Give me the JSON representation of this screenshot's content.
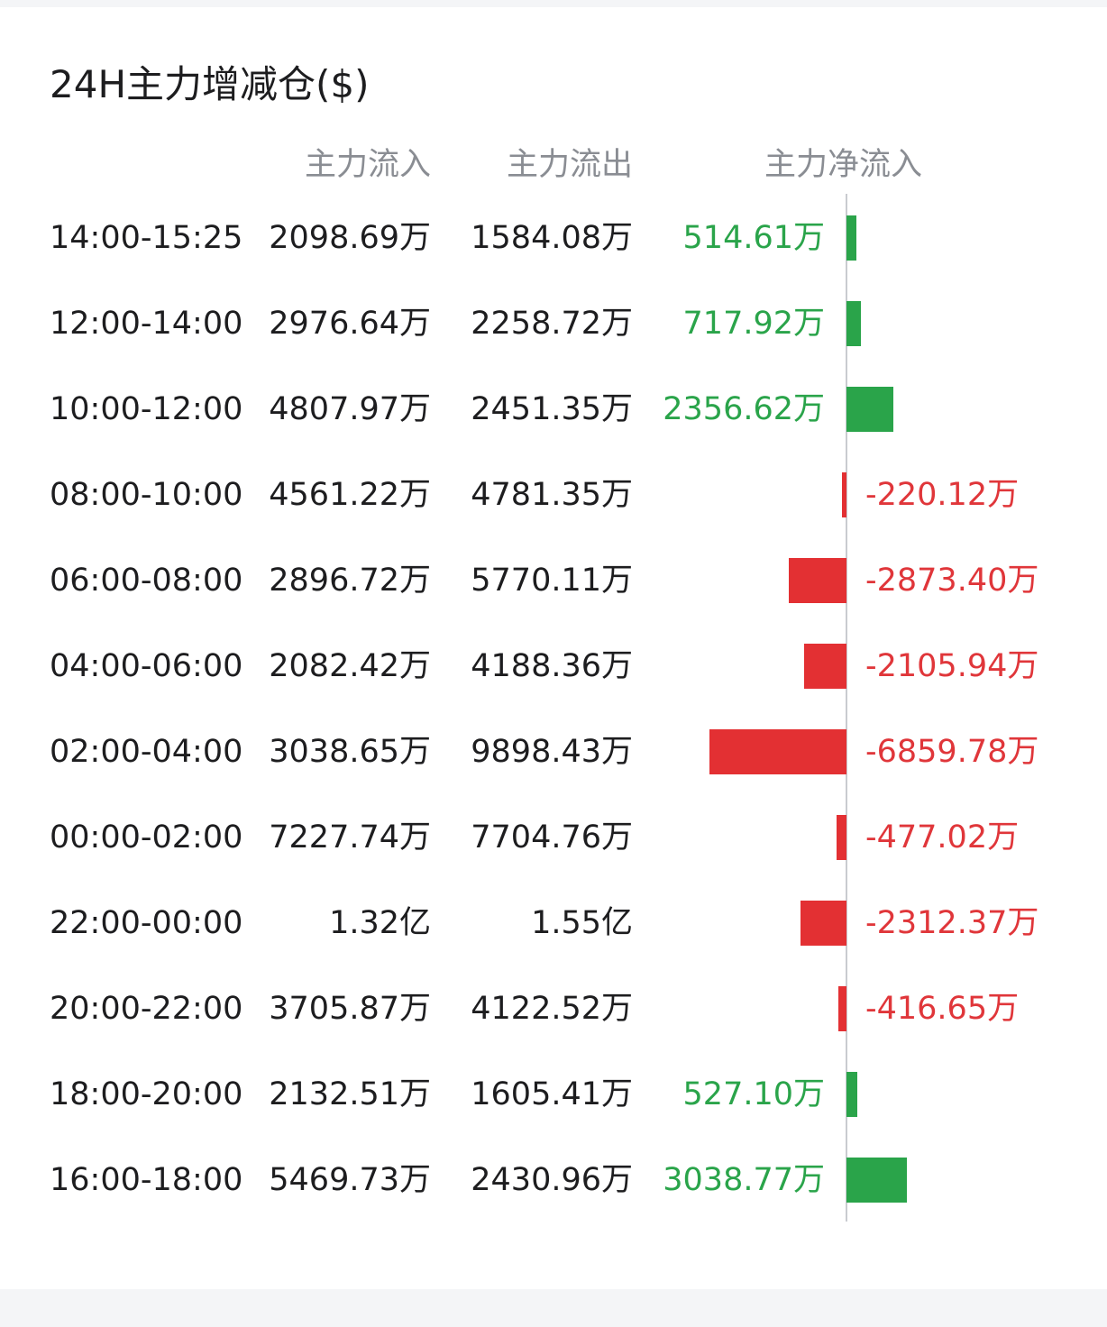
{
  "title": "24H主力增减仓($)",
  "columns": {
    "inflow": "主力流入",
    "outflow": "主力流出",
    "net": "主力净流入"
  },
  "colors": {
    "positive": "#2aa44a",
    "negative": "#e33033"
  },
  "rows": [
    {
      "time": "14:00-15:25",
      "inflow": "2098.69万",
      "outflow": "1584.08万",
      "net": "514.61万",
      "net_value": 514.61
    },
    {
      "time": "12:00-14:00",
      "inflow": "2976.64万",
      "outflow": "2258.72万",
      "net": "717.92万",
      "net_value": 717.92
    },
    {
      "time": "10:00-12:00",
      "inflow": "4807.97万",
      "outflow": "2451.35万",
      "net": "2356.62万",
      "net_value": 2356.62
    },
    {
      "time": "08:00-10:00",
      "inflow": "4561.22万",
      "outflow": "4781.35万",
      "net": "-220.12万",
      "net_value": -220.12
    },
    {
      "time": "06:00-08:00",
      "inflow": "2896.72万",
      "outflow": "5770.11万",
      "net": "-2873.40万",
      "net_value": -2873.4
    },
    {
      "time": "04:00-06:00",
      "inflow": "2082.42万",
      "outflow": "4188.36万",
      "net": "-2105.94万",
      "net_value": -2105.94
    },
    {
      "time": "02:00-04:00",
      "inflow": "3038.65万",
      "outflow": "9898.43万",
      "net": "-6859.78万",
      "net_value": -6859.78
    },
    {
      "time": "00:00-02:00",
      "inflow": "7227.74万",
      "outflow": "7704.76万",
      "net": "-477.02万",
      "net_value": -477.02
    },
    {
      "time": "22:00-00:00",
      "inflow": "1.32亿",
      "outflow": "1.55亿",
      "net": "-2312.37万",
      "net_value": -2312.37
    },
    {
      "time": "20:00-22:00",
      "inflow": "3705.87万",
      "outflow": "4122.52万",
      "net": "-416.65万",
      "net_value": -416.65
    },
    {
      "time": "18:00-20:00",
      "inflow": "2132.51万",
      "outflow": "1605.41万",
      "net": "527.10万",
      "net_value": 527.1
    },
    {
      "time": "16:00-18:00",
      "inflow": "5469.73万",
      "outflow": "2430.96万",
      "net": "3038.77万",
      "net_value": 3038.77
    }
  ]
}
